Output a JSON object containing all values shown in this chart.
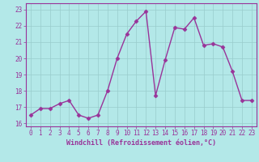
{
  "x": [
    0,
    1,
    2,
    3,
    4,
    5,
    6,
    7,
    8,
    9,
    10,
    11,
    12,
    13,
    14,
    15,
    16,
    17,
    18,
    19,
    20,
    21,
    22,
    23
  ],
  "y": [
    16.5,
    16.9,
    16.9,
    17.2,
    17.4,
    16.5,
    16.3,
    16.5,
    18.0,
    20.0,
    21.5,
    22.3,
    22.9,
    17.7,
    19.9,
    21.9,
    21.8,
    22.5,
    20.8,
    20.9,
    20.7,
    19.2,
    17.4,
    17.4
  ],
  "line_color": "#993399",
  "marker": "D",
  "marker_size": 2.5,
  "bg_color": "#b3e8e8",
  "grid_color": "#99cccc",
  "xlabel": "Windchill (Refroidissement éolien,°C)",
  "ylim": [
    15.8,
    23.4
  ],
  "xlim": [
    -0.5,
    23.5
  ],
  "yticks": [
    16,
    17,
    18,
    19,
    20,
    21,
    22,
    23
  ],
  "xticks": [
    0,
    1,
    2,
    3,
    4,
    5,
    6,
    7,
    8,
    9,
    10,
    11,
    12,
    13,
    14,
    15,
    16,
    17,
    18,
    19,
    20,
    21,
    22,
    23
  ],
  "axis_color": "#993399",
  "tick_color": "#993399",
  "label_color": "#993399",
  "tick_fontsize": 5.5,
  "xlabel_fontsize": 6.0,
  "linewidth": 1.0
}
